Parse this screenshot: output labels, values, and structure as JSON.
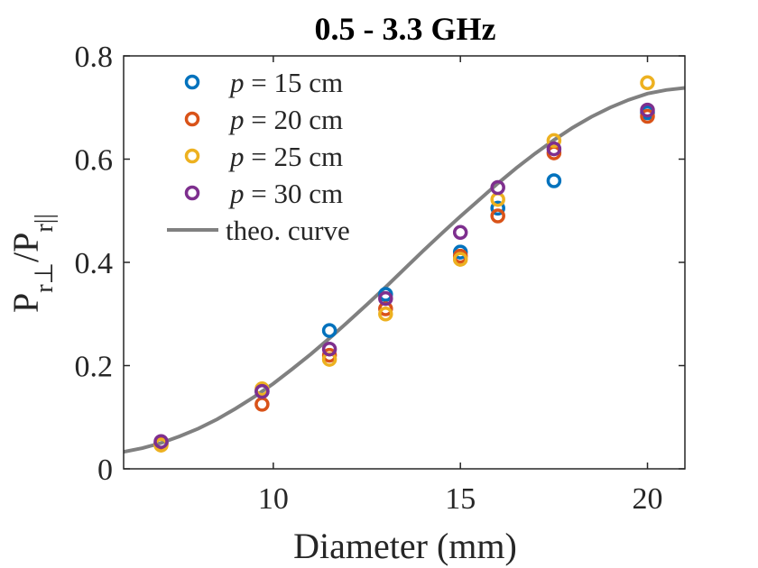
{
  "chart_data": {
    "type": "scatter",
    "title": "0.5 - 3.3 GHz",
    "xlabel": "Diameter (mm)",
    "ylabel": {
      "base": "P",
      "num_sub": "r⊥",
      "sep": "/P",
      "den_sub": "r||"
    },
    "xlim": [
      6,
      21
    ],
    "ylim": [
      0,
      0.8
    ],
    "xticks": [
      10,
      15,
      20
    ],
    "yticks": [
      0,
      0.2,
      0.4,
      0.6,
      0.8
    ],
    "xtick_labels": [
      "10",
      "15",
      "20"
    ],
    "ytick_labels": [
      "0",
      "0.2",
      "0.4",
      "0.6",
      "0.8"
    ],
    "x": [
      7,
      9.7,
      11.5,
      13,
      15,
      16,
      17.5,
      20
    ],
    "series": [
      {
        "name": "p = 15 cm",
        "var": "p",
        "rest": " = 15 cm",
        "color": "#0072BD",
        "values": [
          0.05,
          0.15,
          0.268,
          0.338,
          0.42,
          0.505,
          0.558,
          0.69
        ]
      },
      {
        "name": "p = 20 cm",
        "var": "p",
        "rest": " = 20 cm",
        "color": "#D95319",
        "values": [
          0.048,
          0.125,
          0.22,
          0.31,
          0.412,
          0.49,
          0.612,
          0.683
        ]
      },
      {
        "name": "p = 25 cm",
        "var": "p",
        "rest": " = 25 cm",
        "color": "#EDB120",
        "values": [
          0.046,
          0.155,
          0.212,
          0.3,
          0.406,
          0.522,
          0.636,
          0.748
        ]
      },
      {
        "name": "p = 30 cm",
        "var": "p",
        "rest": " = 30 cm",
        "color": "#7E2F8E",
        "values": [
          0.053,
          0.15,
          0.232,
          0.33,
          0.458,
          0.545,
          0.62,
          0.695
        ]
      }
    ],
    "curve": {
      "name": "theo. curve",
      "color": "#808080",
      "x": [
        6,
        6.5,
        7,
        7.5,
        8,
        8.5,
        9,
        9.5,
        10,
        10.5,
        11,
        11.5,
        12,
        12.5,
        13,
        13.5,
        14,
        14.5,
        15,
        15.5,
        16,
        16.5,
        17,
        17.5,
        18,
        18.5,
        19,
        19.5,
        20,
        20.5,
        21
      ],
      "y": [
        0.033,
        0.04,
        0.05,
        0.063,
        0.078,
        0.096,
        0.117,
        0.14,
        0.165,
        0.193,
        0.222,
        0.253,
        0.285,
        0.318,
        0.352,
        0.387,
        0.422,
        0.456,
        0.489,
        0.521,
        0.553,
        0.583,
        0.611,
        0.637,
        0.661,
        0.682,
        0.7,
        0.715,
        0.727,
        0.734,
        0.738
      ]
    },
    "legend": "top-left",
    "grid": false
  }
}
